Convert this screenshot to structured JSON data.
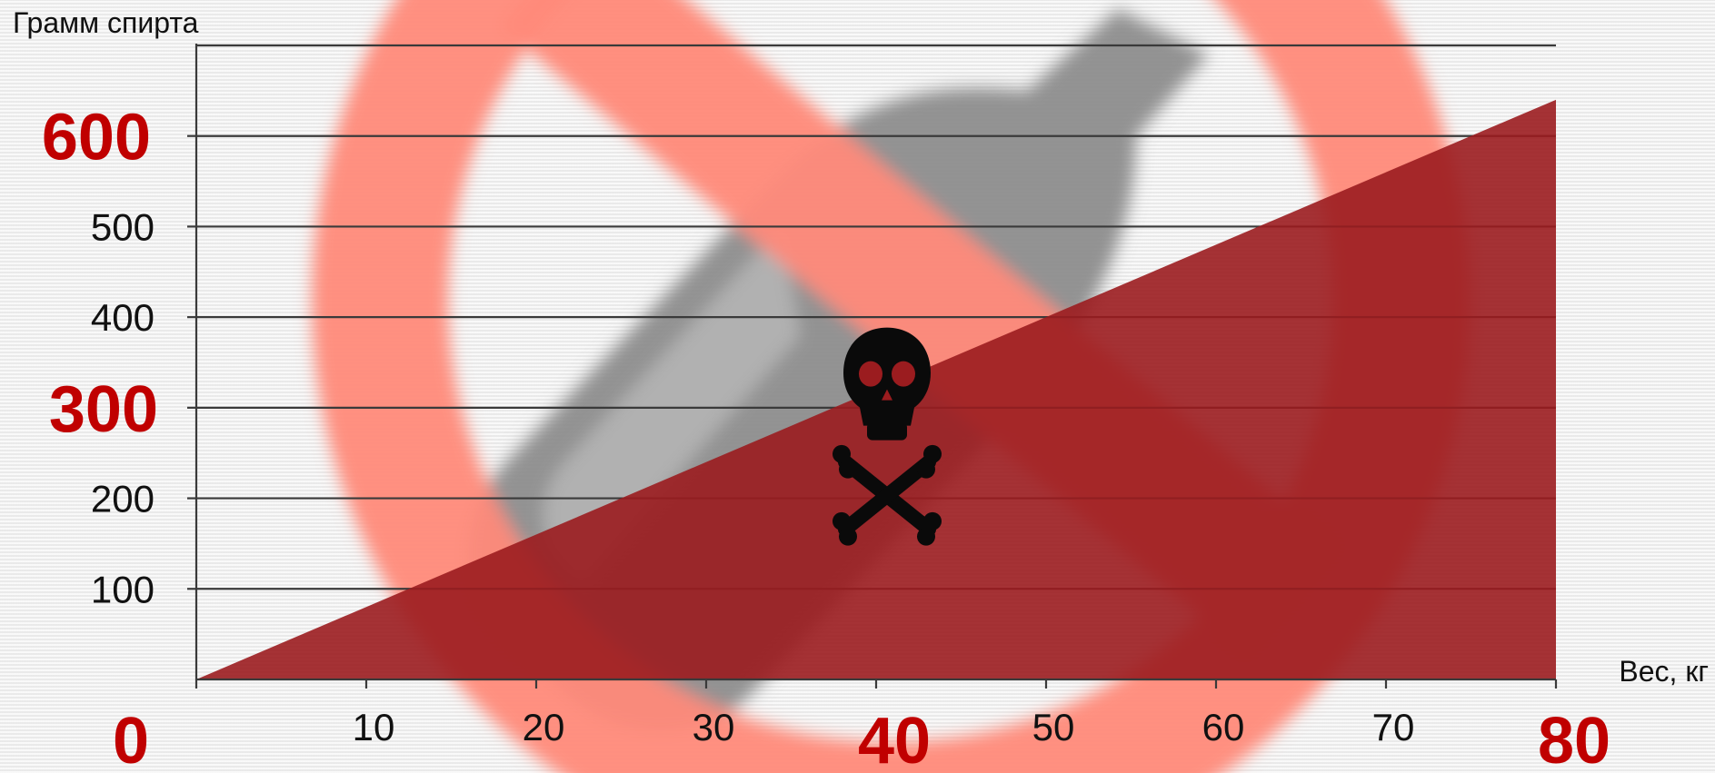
{
  "chart_data": {
    "type": "area",
    "xlabel": "Вес, кг",
    "ylabel": "Грамм спирта",
    "xlim": [
      0,
      80
    ],
    "ylim": [
      0,
      700
    ],
    "x": [
      0,
      80
    ],
    "series": [
      {
        "values": [
          0,
          640
        ]
      }
    ],
    "x_ticks": [
      {
        "value": 0,
        "label": "0",
        "emphasis": true
      },
      {
        "value": 10,
        "label": "10",
        "emphasis": false
      },
      {
        "value": 20,
        "label": "20",
        "emphasis": false
      },
      {
        "value": 30,
        "label": "30",
        "emphasis": false
      },
      {
        "value": 40,
        "label": "40",
        "emphasis": true
      },
      {
        "value": 50,
        "label": "50",
        "emphasis": false
      },
      {
        "value": 60,
        "label": "60",
        "emphasis": false
      },
      {
        "value": 70,
        "label": "70",
        "emphasis": false
      },
      {
        "value": 80,
        "label": "80",
        "emphasis": true
      }
    ],
    "y_ticks": [
      {
        "value": 100,
        "label": "100",
        "emphasis": false
      },
      {
        "value": 200,
        "label": "200",
        "emphasis": false
      },
      {
        "value": 300,
        "label": "300",
        "emphasis": true
      },
      {
        "value": 400,
        "label": "400",
        "emphasis": false
      },
      {
        "value": 500,
        "label": "500",
        "emphasis": false
      },
      {
        "value": 600,
        "label": "600",
        "emphasis": true
      }
    ],
    "gridlines": [
      100,
      200,
      300,
      400,
      500,
      600,
      700
    ],
    "grid": true,
    "legend": "none",
    "annotation": {
      "icon": "skull-crossbones-icon",
      "x": 40,
      "y": 220
    },
    "background_icon": "prohibited-bottle-icon"
  },
  "colors": {
    "area_fill": "#9b1c1f",
    "emphasis_label": "#c00000",
    "tick_label": "#111111",
    "gridline": "#3a3a3a",
    "prohibition_ring": "#ff8a7a",
    "bottle": "#8a8a8a",
    "icon": "#0a0a0a"
  }
}
